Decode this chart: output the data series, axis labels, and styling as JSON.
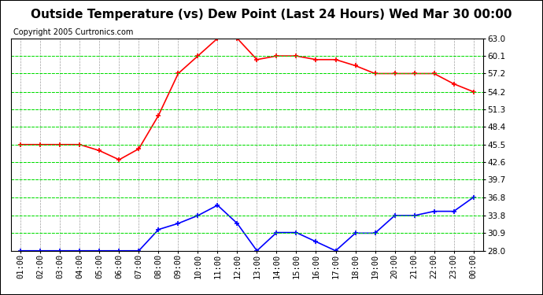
{
  "title": "Outside Temperature (vs) Dew Point (Last 24 Hours) Wed Mar 30 00:00",
  "copyright": "Copyright 2005 Curtronics.com",
  "x_labels": [
    "01:00",
    "02:00",
    "03:00",
    "04:00",
    "05:00",
    "06:00",
    "07:00",
    "08:00",
    "09:00",
    "10:00",
    "11:00",
    "12:00",
    "13:00",
    "14:00",
    "15:00",
    "16:00",
    "17:00",
    "18:00",
    "19:00",
    "20:00",
    "21:00",
    "22:00",
    "23:00",
    "00:00"
  ],
  "temp_red": [
    45.5,
    45.5,
    45.5,
    45.5,
    44.5,
    43.0,
    44.8,
    50.3,
    57.2,
    60.1,
    63.0,
    63.0,
    59.5,
    60.1,
    60.1,
    59.5,
    59.5,
    58.5,
    57.2,
    57.2,
    57.2,
    57.2,
    55.5,
    54.2
  ],
  "dew_blue": [
    28.0,
    28.0,
    28.0,
    28.0,
    28.0,
    28.0,
    28.0,
    31.5,
    32.5,
    33.8,
    35.5,
    32.5,
    28.0,
    31.0,
    31.0,
    29.5,
    28.0,
    30.9,
    30.9,
    33.8,
    33.8,
    34.5,
    34.5,
    36.8
  ],
  "y_ticks": [
    28.0,
    30.9,
    33.8,
    36.8,
    39.7,
    42.6,
    45.5,
    48.4,
    51.3,
    54.2,
    57.2,
    60.1,
    63.0
  ],
  "ylim": [
    28.0,
    63.0
  ],
  "bg_color": "#ffffff",
  "plot_bg_color": "#ffffff",
  "grid_color_h": "#00dd00",
  "grid_color_v": "#888888",
  "red_color": "#ff0000",
  "blue_color": "#0000ff",
  "title_fontsize": 11,
  "copyright_fontsize": 7,
  "tick_fontsize": 7.5,
  "marker_size": 4
}
